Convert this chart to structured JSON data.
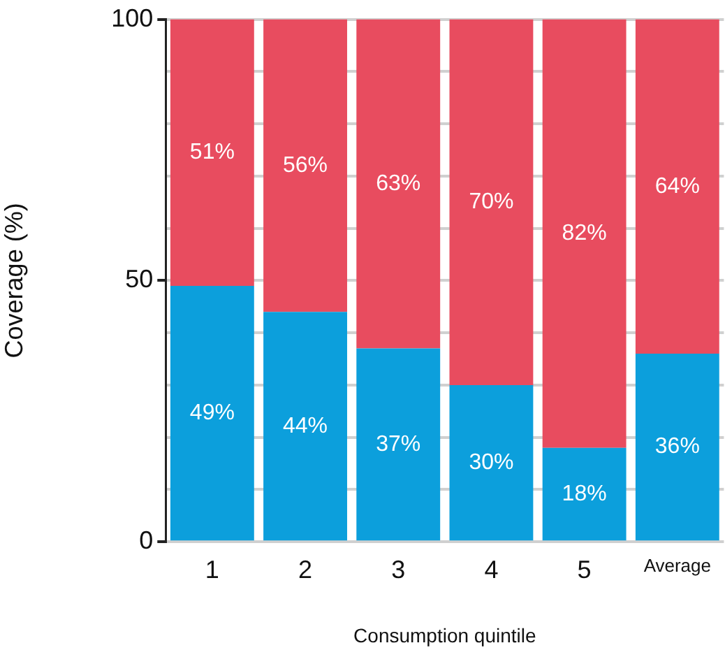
{
  "chart_data": {
    "type": "bar",
    "stacked": true,
    "xlabel": "Consumption quintile",
    "ylabel": "Coverage (%)",
    "categories": [
      "1",
      "2",
      "3",
      "4",
      "5",
      "Average"
    ],
    "series": [
      {
        "color": "#0c9fdc",
        "values": [
          49,
          44,
          37,
          30,
          18,
          36
        ],
        "value_labels": [
          "49%",
          "44%",
          "37%",
          "30%",
          "18%",
          "36%"
        ]
      },
      {
        "color": "#e84c5f",
        "values": [
          51,
          56,
          63,
          70,
          82,
          64
        ],
        "value_labels": [
          "51%",
          "56%",
          "63%",
          "70%",
          "82%",
          "64%"
        ]
      }
    ],
    "ylim": [
      0,
      100
    ],
    "yticks": [
      0,
      {
        "value": 10,
        "label": null
      },
      {
        "value": 20,
        "label": null
      },
      {
        "value": 30,
        "label": null
      },
      {
        "value": 40,
        "label": null
      },
      50,
      {
        "value": 60,
        "label": null
      },
      {
        "value": 70,
        "label": null
      },
      {
        "value": 80,
        "label": null
      },
      {
        "value": 90,
        "label": null
      },
      100
    ],
    "grid": "y",
    "legend": false
  }
}
